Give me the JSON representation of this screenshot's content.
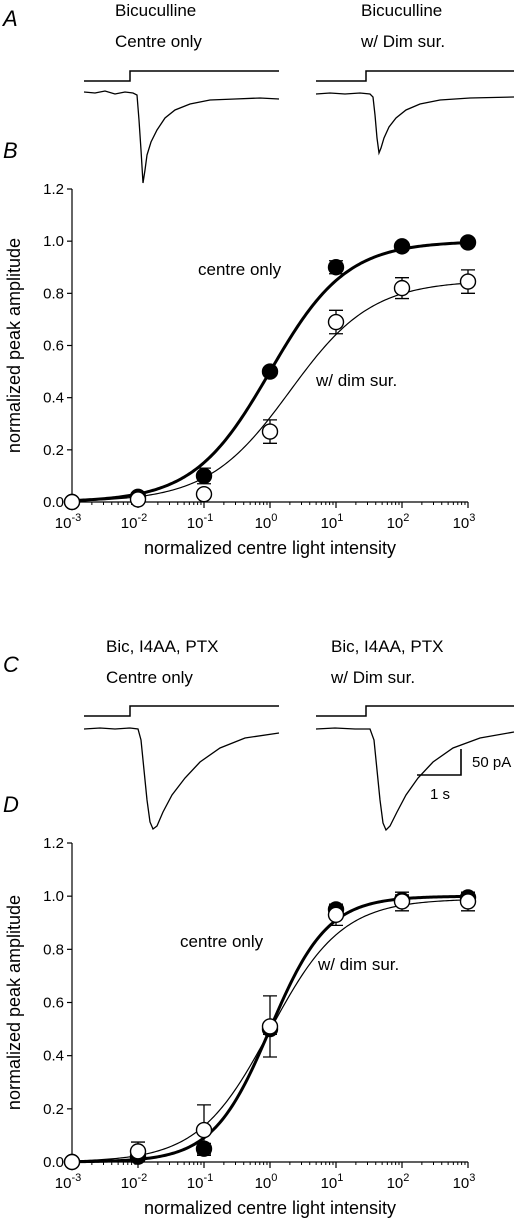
{
  "panels": {
    "A": {
      "letter": "A",
      "traces": [
        {
          "line1": "Bicuculline",
          "line2": "Centre only"
        },
        {
          "line1": "Bicuculline",
          "line2": "w/ Dim sur."
        }
      ]
    },
    "C": {
      "letter": "C",
      "traces": [
        {
          "line1": "Bic, I4AA, PTX",
          "line2": "Centre only"
        },
        {
          "line1": "Bic, I4AA, PTX",
          "line2": "w/ Dim sur."
        }
      ]
    }
  },
  "scale_bar": {
    "amplitude_label": "50 pA",
    "time_label": "1 s"
  },
  "chart_data": [
    {
      "panel": "B",
      "type": "scatter",
      "xlabel": "normalized centre light intensity",
      "ylabel": "normalized peak amplitude",
      "x_scale": "log",
      "x_ticks": [
        "10-3",
        "10-2",
        "10-1",
        "100",
        "101",
        "102",
        "103"
      ],
      "ylim": [
        0,
        1.2
      ],
      "y_ticks": [
        "0.0",
        "0.2",
        "0.4",
        "0.6",
        "0.8",
        "1.0",
        "1.2"
      ],
      "x": [
        0.001,
        0.01,
        0.1,
        1,
        10,
        100,
        1000
      ],
      "series": [
        {
          "name": "centre only",
          "marker": "filled",
          "color": "#000000",
          "values": [
            0.0,
            0.02,
            0.1,
            0.5,
            0.9,
            0.98,
            0.995
          ],
          "errors": [
            0.01,
            0.015,
            0.03,
            0.015,
            0.025,
            0.015,
            0.015
          ],
          "fit": {
            "max": 1.0,
            "half": 1.0,
            "n": 0.75,
            "stroke": 3
          }
        },
        {
          "name": "w/ dim sur.",
          "marker": "open",
          "color": "#000000",
          "values": [
            0.0,
            0.01,
            0.03,
            0.27,
            0.69,
            0.82,
            0.845
          ],
          "errors": [
            0.01,
            0.015,
            0.015,
            0.045,
            0.045,
            0.04,
            0.045
          ],
          "fit": {
            "max": 0.85,
            "half": 2.0,
            "n": 0.7,
            "stroke": 1.2
          }
        }
      ]
    },
    {
      "panel": "D",
      "type": "scatter",
      "xlabel": "normalized centre light intensity",
      "ylabel": "normalized peak amplitude",
      "x_scale": "log",
      "x_ticks": [
        "10-3",
        "10-2",
        "10-1",
        "100",
        "101",
        "102",
        "103"
      ],
      "ylim": [
        0,
        1.2
      ],
      "y_ticks": [
        "0.0",
        "0.2",
        "0.4",
        "0.6",
        "0.8",
        "1.0",
        "1.2"
      ],
      "x": [
        0.001,
        0.01,
        0.1,
        1,
        10,
        100,
        1000
      ],
      "series": [
        {
          "name": "centre only",
          "marker": "filled",
          "color": "#000000",
          "values": [
            0.0,
            0.02,
            0.05,
            0.5,
            0.95,
            0.985,
            0.995
          ],
          "errors": [
            0.01,
            0.015,
            0.02,
            0.02,
            0.02,
            0.02,
            0.02
          ],
          "fit": {
            "max": 1.0,
            "half": 1.0,
            "n": 1.0,
            "stroke": 3
          }
        },
        {
          "name": "w/ dim sur.",
          "marker": "open",
          "color": "#000000",
          "values": [
            0.0,
            0.04,
            0.12,
            0.51,
            0.93,
            0.98,
            0.98
          ],
          "errors": [
            0.01,
            0.035,
            0.095,
            0.115,
            0.04,
            0.035,
            0.035
          ],
          "fit": {
            "max": 0.99,
            "half": 1.0,
            "n": 0.8,
            "stroke": 1.2
          }
        }
      ]
    }
  ]
}
